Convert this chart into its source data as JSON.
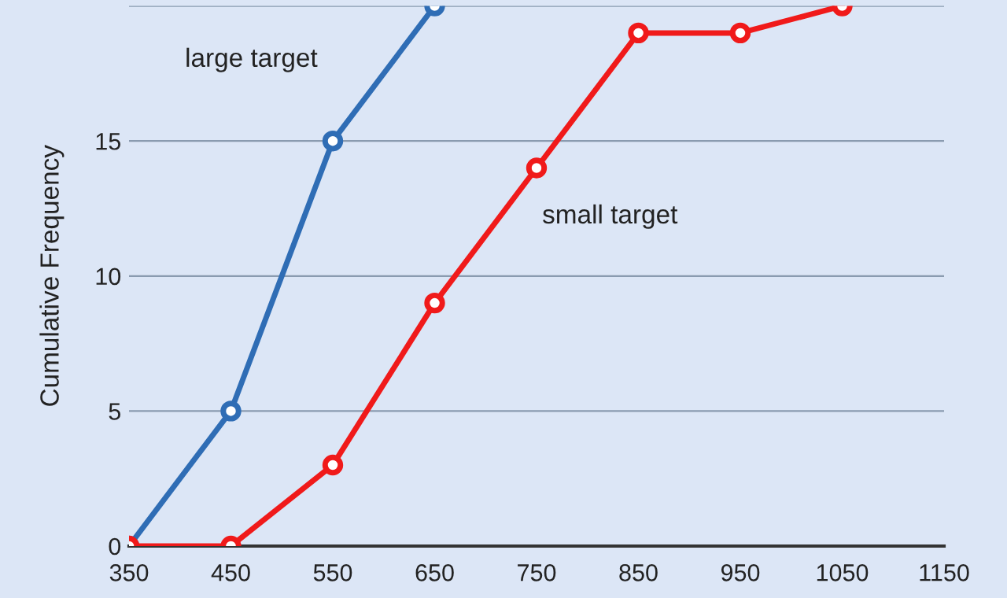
{
  "chart_data": {
    "type": "line",
    "ylabel": "Cumulative Frequency",
    "x": [
      350,
      450,
      550,
      650,
      750,
      850,
      950,
      1050
    ],
    "series": [
      {
        "color": "#2f6db5",
        "values": [
          0,
          5,
          15,
          20,
          null,
          null,
          null,
          null
        ]
      },
      {
        "color": "#f01a1a",
        "values": [
          0,
          0,
          3,
          9,
          14,
          19,
          19,
          20
        ]
      }
    ],
    "xlim": [
      350,
      1150
    ],
    "xticks": [
      350,
      450,
      550,
      650,
      750,
      850,
      950,
      1050,
      1150
    ],
    "ylim": [
      0,
      20
    ],
    "yticks": [
      0,
      5,
      10,
      15,
      {
        "value": 20,
        "label": null
      }
    ],
    "grid": "y",
    "marker": "circle",
    "line_style": "solid",
    "annotations": [
      "large target",
      "small target"
    ]
  }
}
